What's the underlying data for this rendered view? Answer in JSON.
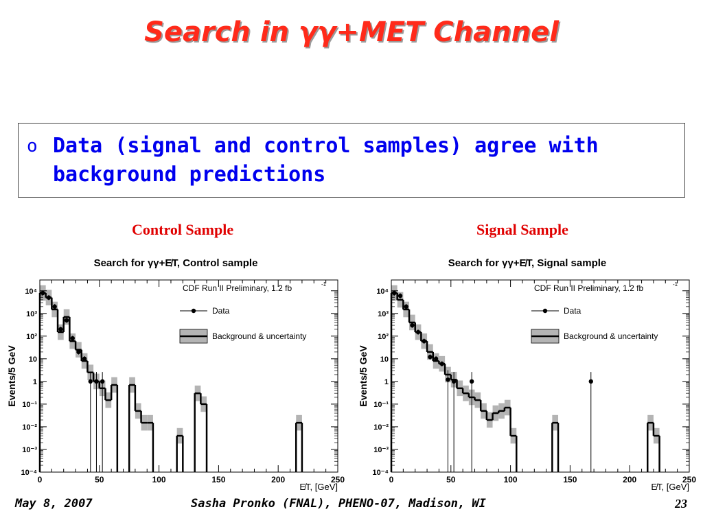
{
  "slide": {
    "title": "Search in γγ+MET Channel",
    "bullet_marker": "o",
    "bullet": "Data (signal and control samples) agree with background predictions",
    "footer_left": "May 8, 2007",
    "footer_center": "Sasha Pronko (FNAL), PHENO-07, Madison, WI",
    "page_number": "23"
  },
  "colors": {
    "title": "#ff2a1a",
    "bullet": "#0000ee",
    "panel_label": "#e00000",
    "band": "#b4b4b4"
  },
  "chart_data": [
    {
      "panel_label": "Control Sample",
      "type": "bar",
      "title": "Search for γγ+E̸T, Control sample",
      "annotation": "CDF Run II Preliminary, 1.2 fb",
      "annotation_sup": "-1",
      "xlabel": "E̸T, [GeV]",
      "ylabel": "Events/5 GeV",
      "xlim": [
        0,
        250
      ],
      "ylim": [
        0.0001,
        30000
      ],
      "yscale": "log",
      "xticks": [
        "0",
        "50",
        "100",
        "150",
        "200",
        "250"
      ],
      "yticks": [
        "10⁴",
        "10³",
        "10²",
        "10",
        "1",
        "10⁻¹",
        "10⁻²",
        "10⁻³",
        "10⁻⁴"
      ],
      "legend": [
        {
          "label": "Data",
          "kind": "marker"
        },
        {
          "label": "Background & uncertainty",
          "kind": "band"
        }
      ],
      "series": [
        {
          "name": "Background & uncertainty",
          "kind": "hist",
          "bins": [
            [
              0,
              5,
              8000
            ],
            [
              5,
              10,
              5000
            ],
            [
              10,
              15,
              1500
            ],
            [
              15,
              20,
              150
            ],
            [
              20,
              25,
              700
            ],
            [
              25,
              30,
              60
            ],
            [
              30,
              35,
              25
            ],
            [
              35,
              40,
              8
            ],
            [
              40,
              45,
              2.5
            ],
            [
              45,
              50,
              1
            ],
            [
              50,
              55,
              0.5
            ],
            [
              55,
              60,
              0.15
            ],
            [
              60,
              65,
              0.7
            ],
            [
              65,
              70,
              0.0001
            ],
            [
              70,
              75,
              0.0001
            ],
            [
              75,
              80,
              0.7
            ],
            [
              80,
              85,
              0.05
            ],
            [
              85,
              90,
              0.015
            ],
            [
              90,
              95,
              0.015
            ],
            [
              115,
              120,
              0.004
            ],
            [
              130,
              135,
              0.3
            ],
            [
              135,
              140,
              0.1
            ],
            [
              215,
              220,
              0.015
            ]
          ]
        },
        {
          "name": "Data",
          "kind": "points",
          "points": [
            [
              2.5,
              8000
            ],
            [
              7.5,
              5000
            ],
            [
              12.5,
              2000
            ],
            [
              17.5,
              200
            ],
            [
              22.5,
              500
            ],
            [
              27.5,
              80
            ],
            [
              32.5,
              20
            ],
            [
              37.5,
              10
            ],
            [
              42.5,
              1
            ],
            [
              47.5,
              1
            ],
            [
              52.5,
              1
            ]
          ]
        }
      ]
    },
    {
      "panel_label": "Signal Sample",
      "type": "bar",
      "title": "Search for γγ+E̸T, Signal sample",
      "annotation": "CDF Run II Preliminary, 1.2 fb",
      "annotation_sup": "-1",
      "xlabel": "E̸T, [GeV]",
      "ylabel": "Events/5 GeV",
      "xlim": [
        0,
        250
      ],
      "ylim": [
        0.0001,
        30000
      ],
      "yscale": "log",
      "xticks": [
        "0",
        "50",
        "100",
        "150",
        "200",
        "250"
      ],
      "yticks": [
        "10⁴",
        "10³",
        "10²",
        "10",
        "1",
        "10⁻¹",
        "10⁻²",
        "10⁻³",
        "10⁻⁴"
      ],
      "legend": [
        {
          "label": "Data",
          "kind": "marker"
        },
        {
          "label": "Background & uncertainty",
          "kind": "band"
        }
      ],
      "series": [
        {
          "name": "Background & uncertainty",
          "kind": "hist",
          "bins": [
            [
              0,
              5,
              8000
            ],
            [
              5,
              10,
              4000
            ],
            [
              10,
              15,
              1500
            ],
            [
              15,
              20,
              400
            ],
            [
              20,
              25,
              150
            ],
            [
              25,
              30,
              60
            ],
            [
              30,
              35,
              20
            ],
            [
              35,
              40,
              8
            ],
            [
              40,
              45,
              6
            ],
            [
              45,
              50,
              2
            ],
            [
              50,
              55,
              1.2
            ],
            [
              55,
              60,
              0.5
            ],
            [
              60,
              65,
              0.3
            ],
            [
              65,
              70,
              0.2
            ],
            [
              70,
              75,
              0.15
            ],
            [
              75,
              80,
              0.05
            ],
            [
              80,
              85,
              0.02
            ],
            [
              85,
              90,
              0.04
            ],
            [
              90,
              95,
              0.05
            ],
            [
              95,
              100,
              0.07
            ],
            [
              100,
              105,
              0.004
            ],
            [
              135,
              140,
              0.015
            ],
            [
              215,
              220,
              0.015
            ],
            [
              220,
              225,
              0.004
            ]
          ]
        },
        {
          "name": "Data",
          "kind": "points",
          "points": [
            [
              2.5,
              8000
            ],
            [
              7.5,
              6000
            ],
            [
              12.5,
              2000
            ],
            [
              17.5,
              300
            ],
            [
              22.5,
              150
            ],
            [
              27.5,
              60
            ],
            [
              32.5,
              12
            ],
            [
              37.5,
              10
            ],
            [
              42.5,
              6
            ],
            [
              47.5,
              1.2
            ],
            [
              52.5,
              1
            ],
            [
              67.5,
              1
            ],
            [
              167.5,
              1
            ]
          ]
        }
      ]
    }
  ]
}
